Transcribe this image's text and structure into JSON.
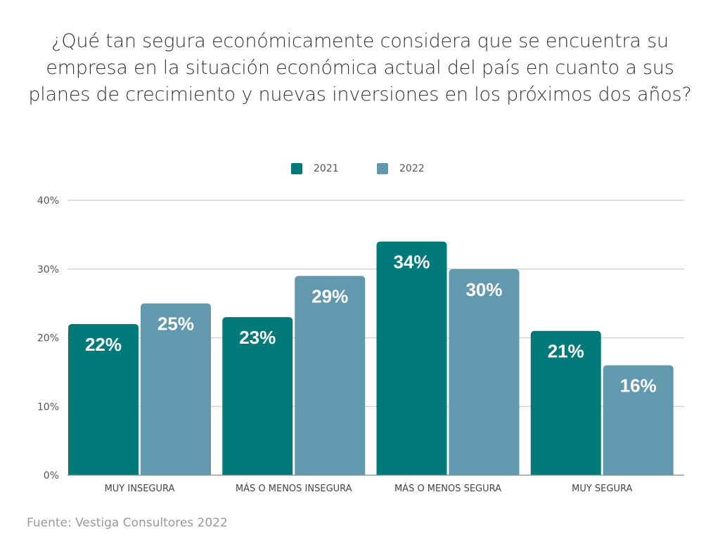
{
  "colors": {
    "series_2021": "#027a7a",
    "series_2022": "#6399ae",
    "grid": "#cccccc",
    "axis": "#888888"
  },
  "source": "Fuente: Vestiga Consultores 2022",
  "chart_data": {
    "type": "bar",
    "title": "¿Qué tan segura económicamente considera que se encuentra su empresa en la situación económica actual del país en cuanto a sus planes de crecimiento y nuevas inversiones en los próximos dos años?",
    "xlabel": "",
    "ylabel": "",
    "categories": [
      "MUY INSEGURA",
      "MÁS O MENOS INSEGURA",
      "MÁS O MENOS SEGURA",
      "MUY SEGURA"
    ],
    "series": [
      {
        "name": "2021",
        "values": [
          22,
          23,
          34,
          21
        ],
        "labels": [
          "22%",
          "23%",
          "34%",
          "21%"
        ]
      },
      {
        "name": "2022",
        "values": [
          25,
          29,
          30,
          16
        ],
        "labels": [
          "25%",
          "29%",
          "30%",
          "16%"
        ]
      }
    ],
    "ylim": [
      0,
      40
    ],
    "yticks": [
      0,
      10,
      20,
      30,
      40
    ],
    "ytick_labels": [
      "0%",
      "10%",
      "20%",
      "30%",
      "40%"
    ],
    "grid": true,
    "legend": "top-center"
  }
}
